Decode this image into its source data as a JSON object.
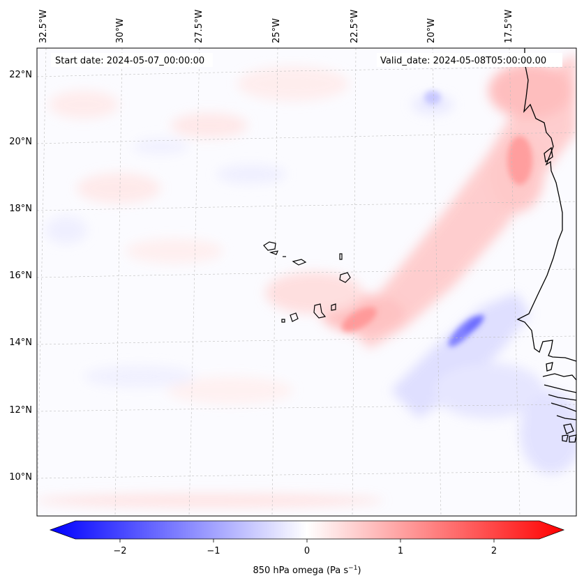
{
  "header": {
    "start_date": "Start date: 2024-05-07_00:00:00",
    "valid_date": "Valid_date: 2024-05-08T05:00:00.00"
  },
  "longitude_labels": [
    "32.5°W",
    "30°W",
    "27.5°W",
    "25°W",
    "22.5°W",
    "20°W",
    "17.5°W"
  ],
  "latitude_labels": [
    "22°N",
    "20°N",
    "18°N",
    "16°N",
    "14°N",
    "12°N",
    "10°N"
  ],
  "colorbar": {
    "ticks": [
      "−2",
      "−1",
      "0",
      "1",
      "2"
    ],
    "label_main": "850 hPa omega (Pa s",
    "label_exp": "−1",
    "label_close": ")",
    "colors": {
      "negative": "#0000ff",
      "zero": "#ffffff",
      "positive": "#ff0000"
    }
  },
  "chart_data": {
    "type": "heatmap",
    "variable": "850 hPa omega",
    "units": "Pa s^-1",
    "range": [
      -2.6,
      2.6
    ],
    "colormap": "bwr",
    "lon_range_deg_east": [
      -33.0,
      -15.2
    ],
    "lat_range_deg_north": [
      8.8,
      22.8
    ],
    "features": [
      {
        "name": "rising-band-northwest-africa",
        "sign": "positive",
        "approx_max": 1.3
      },
      {
        "name": "descent-streak-off-senegal",
        "sign": "negative",
        "approx_min": -1.4
      },
      {
        "name": "cape-verde-southeast-positive",
        "sign": "positive",
        "approx_max": 1.2
      }
    ]
  }
}
